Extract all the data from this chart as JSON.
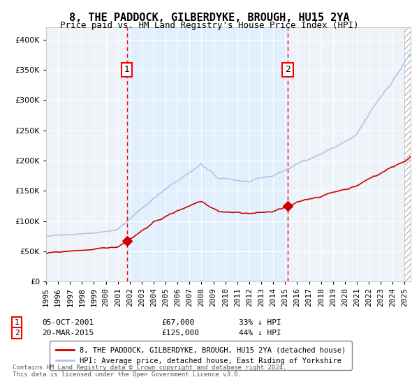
{
  "title": "8, THE PADDOCK, GILBERDYKE, BROUGH, HU15 2YA",
  "subtitle": "Price paid vs. HM Land Registry's House Price Index (HPI)",
  "sale1_date": "05-OCT-2001",
  "sale1_price": 67000,
  "sale1_label": "33% ↓ HPI",
  "sale2_date": "20-MAR-2015",
  "sale2_price": 125000,
  "sale2_label": "44% ↓ HPI",
  "legend1": "8, THE PADDOCK, GILBERDYKE, BROUGH, HU15 2YA (detached house)",
  "legend2": "HPI: Average price, detached house, East Riding of Yorkshire",
  "footnote": "Contains HM Land Registry data © Crown copyright and database right 2024.\nThis data is licensed under the Open Government Licence v3.0.",
  "hpi_color": "#aec6e8",
  "price_color": "#cc0000",
  "shade_color": "#ddeeff",
  "plot_bg": "#eef3fa",
  "ylim": [
    0,
    420000
  ],
  "yticks": [
    0,
    50000,
    100000,
    150000,
    200000,
    250000,
    300000,
    350000,
    400000
  ],
  "sale1_x": 2001.75,
  "sale2_x": 2015.21,
  "xmin": 1995.0,
  "xmax": 2025.5
}
